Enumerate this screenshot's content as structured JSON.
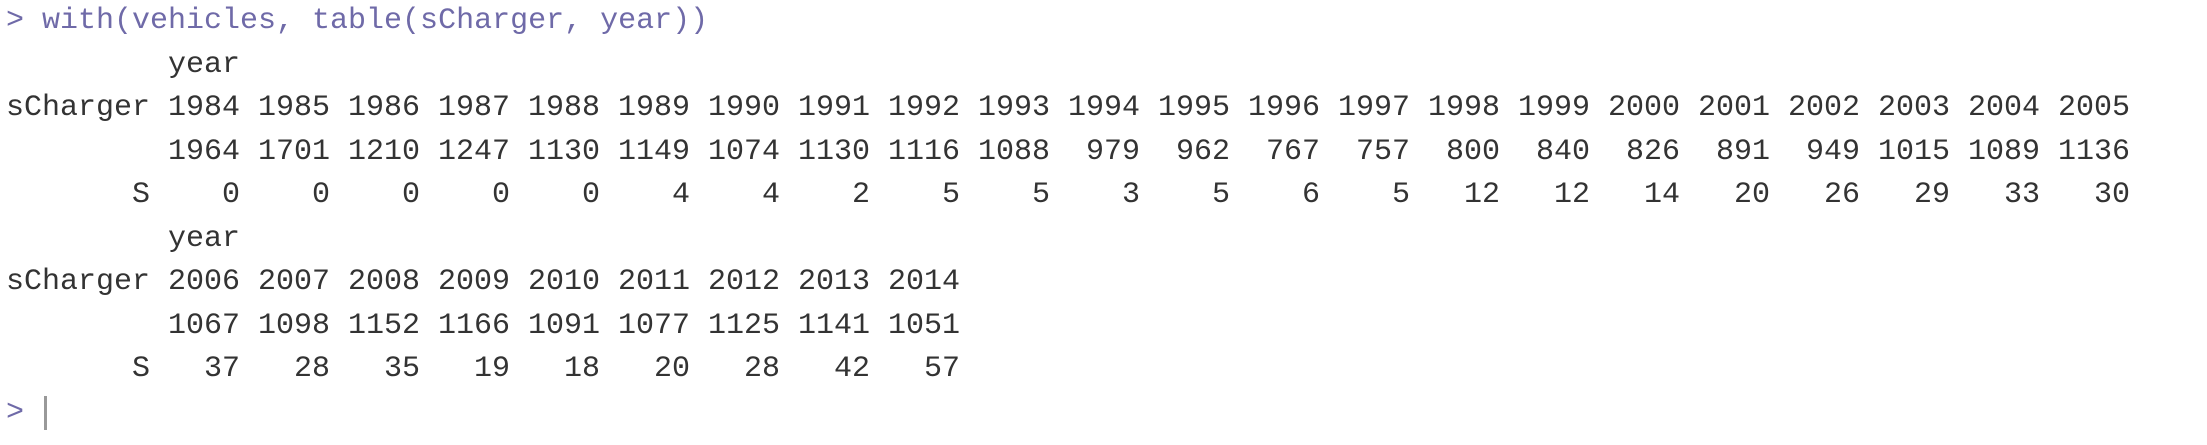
{
  "console": {
    "prompt": ">",
    "command": "with(vehicles, table(sCharger, year))",
    "blocks": [
      {
        "col_var": "year",
        "row_var": "sCharger",
        "years": [
          1984,
          1985,
          1986,
          1987,
          1988,
          1989,
          1990,
          1991,
          1992,
          1993,
          1994,
          1995,
          1996,
          1997,
          1998,
          1999,
          2000,
          2001,
          2002,
          2003,
          2004,
          2005
        ],
        "rows": [
          {
            "label": null,
            "counts": [
              1964,
              1701,
              1210,
              1247,
              1130,
              1149,
              1074,
              1130,
              1116,
              1088,
              979,
              962,
              767,
              757,
              800,
              840,
              826,
              891,
              949,
              1015,
              1089,
              1136
            ]
          },
          {
            "label": "S",
            "counts": [
              0,
              0,
              0,
              0,
              0,
              4,
              4,
              2,
              5,
              5,
              3,
              5,
              6,
              5,
              12,
              12,
              14,
              20,
              26,
              29,
              33,
              30
            ]
          }
        ]
      },
      {
        "col_var": "year",
        "row_var": "sCharger",
        "years": [
          2006,
          2007,
          2008,
          2009,
          2010,
          2011,
          2012,
          2013,
          2014
        ],
        "rows": [
          {
            "label": null,
            "counts": [
              1067,
              1098,
              1152,
              1166,
              1091,
              1077,
              1125,
              1141,
              1051
            ]
          },
          {
            "label": "S",
            "counts": [
              37,
              28,
              35,
              19,
              18,
              20,
              28,
              42,
              57
            ]
          }
        ]
      }
    ],
    "cursor_prompt": ">"
  }
}
